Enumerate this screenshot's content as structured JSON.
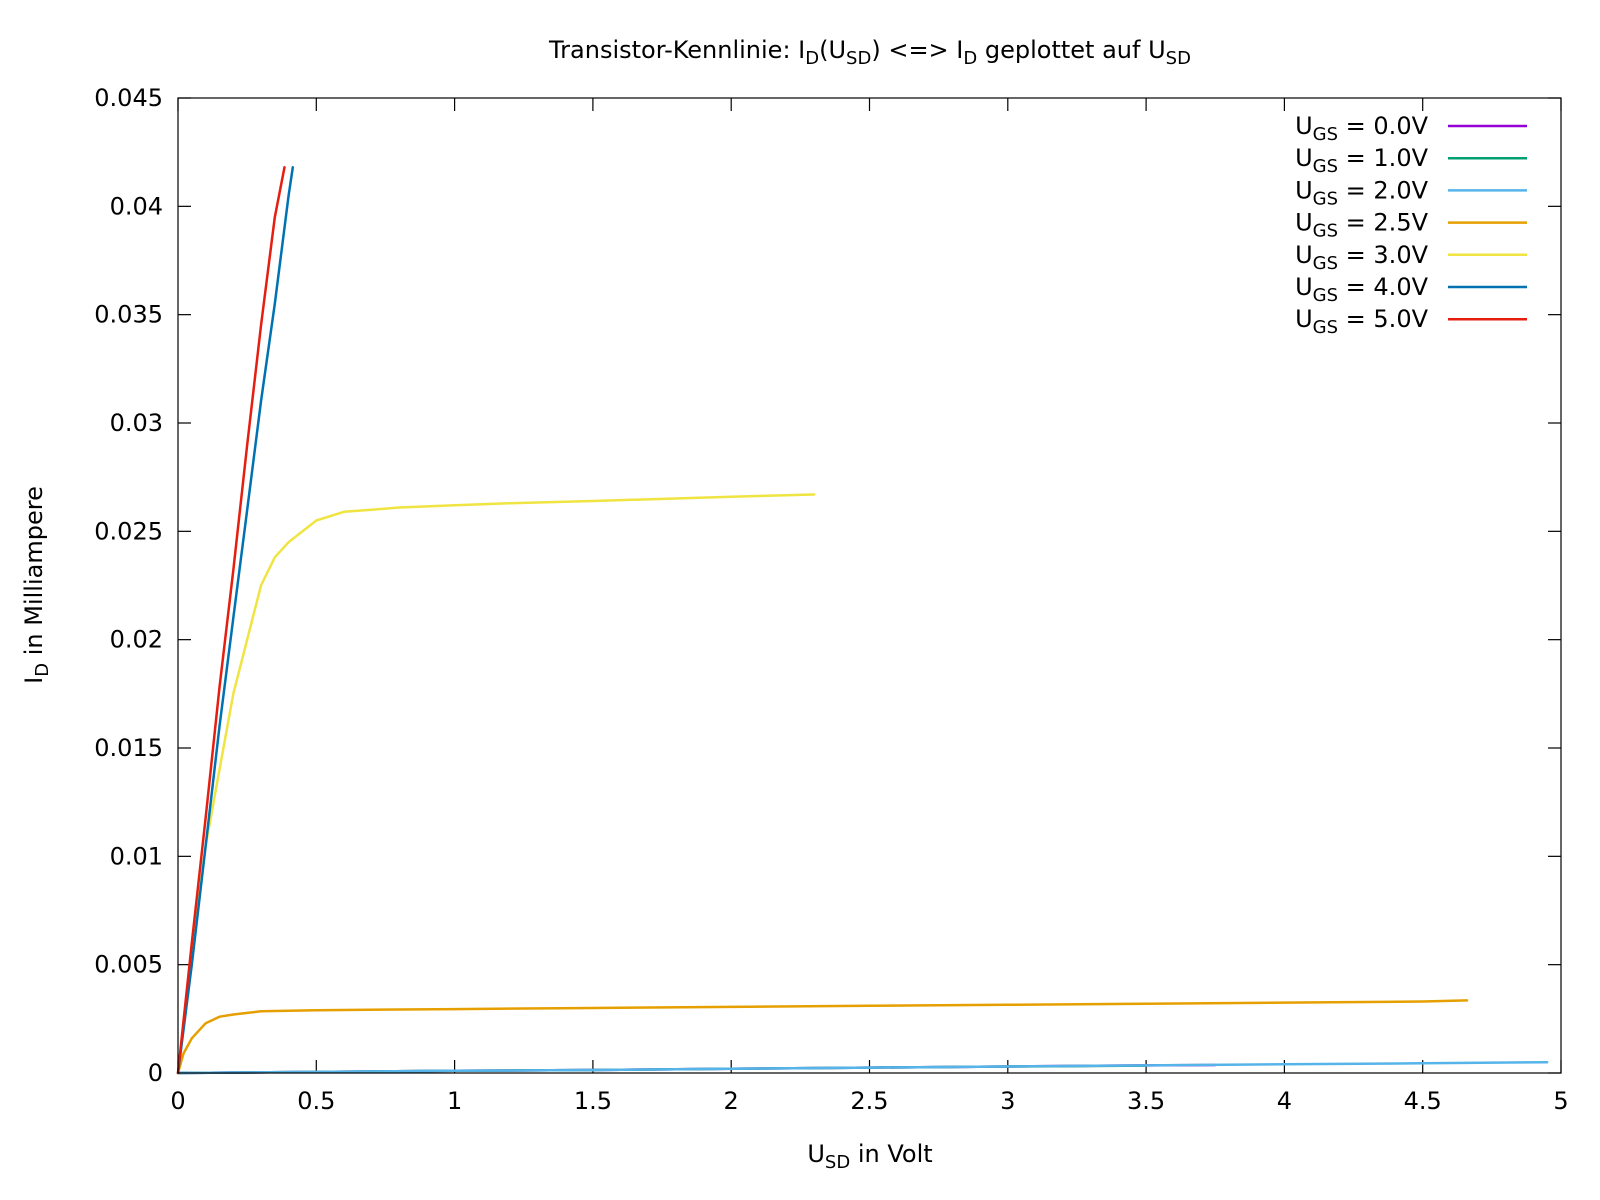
{
  "chart_data": {
    "type": "line",
    "title": {
      "parts": [
        {
          "text": "Transistor-Kennlinie: I"
        },
        {
          "text": "D",
          "sub": true
        },
        {
          "text": "(U"
        },
        {
          "text": "SD",
          "sub": true
        },
        {
          "text": ") <=> I"
        },
        {
          "text": "D",
          "sub": true
        },
        {
          "text": " geplottet auf U"
        },
        {
          "text": "SD",
          "sub": true
        }
      ]
    },
    "xlabel": {
      "parts": [
        {
          "text": "U"
        },
        {
          "text": "SD",
          "sub": true
        },
        {
          "text": " in Volt"
        }
      ]
    },
    "ylabel": {
      "parts": [
        {
          "text": "I"
        },
        {
          "text": "D",
          "sub": true
        },
        {
          "text": " in Milliampere"
        }
      ]
    },
    "xlim": [
      0,
      5
    ],
    "ylim": [
      0,
      0.045
    ],
    "xticks": [
      0,
      0.5,
      1,
      1.5,
      2,
      2.5,
      3,
      3.5,
      4,
      4.5,
      5
    ],
    "xtick_labels": [
      "0",
      "0.5",
      "1",
      "1.5",
      "2",
      "2.5",
      "3",
      "3.5",
      "4",
      "4.5",
      "5"
    ],
    "yticks": [
      0,
      0.005,
      0.01,
      0.015,
      0.02,
      0.025,
      0.03,
      0.035,
      0.04,
      0.045
    ],
    "ytick_labels": [
      "0",
      "0.005",
      "0.01",
      "0.015",
      "0.02",
      "0.025",
      "0.03",
      "0.035",
      "0.04",
      "0.045"
    ],
    "grid": false,
    "legend_position": "top-right",
    "series": [
      {
        "name": "U_GS = 0.0V",
        "label_parts": [
          {
            "text": "U"
          },
          {
            "text": "GS",
            "sub": true
          },
          {
            "text": " = 0.0V"
          }
        ],
        "color": "#9400d3",
        "x": [
          0,
          0.5,
          1,
          1.5,
          2,
          2.5,
          3,
          3.5,
          3.75
        ],
        "y": [
          0,
          5e-05,
          0.0001,
          0.00014,
          0.0002,
          0.00025,
          0.0003,
          0.00035,
          0.00037
        ]
      },
      {
        "name": "U_GS = 1.0V",
        "label_parts": [
          {
            "text": "U"
          },
          {
            "text": "GS",
            "sub": true
          },
          {
            "text": " = 1.0V"
          }
        ],
        "color": "#009e73",
        "x": [
          0,
          0.5,
          1,
          1.5,
          2,
          2.5,
          3,
          3.5
        ],
        "y": [
          0,
          5e-05,
          0.0001,
          0.00014,
          0.0002,
          0.00025,
          0.0003,
          0.00034
        ]
      },
      {
        "name": "U_GS = 2.0V",
        "label_parts": [
          {
            "text": "U"
          },
          {
            "text": "GS",
            "sub": true
          },
          {
            "text": " = 2.0V"
          }
        ],
        "color": "#56b4e9",
        "x": [
          0,
          0.5,
          1,
          1.5,
          2,
          2.5,
          3,
          3.5,
          4,
          4.5,
          4.95
        ],
        "y": [
          0,
          5e-05,
          0.0001,
          0.00014,
          0.0002,
          0.00025,
          0.0003,
          0.00035,
          0.0004,
          0.00045,
          0.0005
        ]
      },
      {
        "name": "U_GS = 2.5V",
        "label_parts": [
          {
            "text": "U"
          },
          {
            "text": "GS",
            "sub": true
          },
          {
            "text": " = 2.5V"
          }
        ],
        "color": "#e69f00",
        "x": [
          0,
          0.02,
          0.05,
          0.1,
          0.15,
          0.2,
          0.3,
          0.5,
          1,
          1.5,
          2,
          2.5,
          3,
          3.5,
          4,
          4.5,
          4.66
        ],
        "y": [
          0,
          0.0009,
          0.0016,
          0.0023,
          0.0026,
          0.0027,
          0.00285,
          0.0029,
          0.00295,
          0.003,
          0.00305,
          0.0031,
          0.00315,
          0.0032,
          0.00325,
          0.0033,
          0.00335
        ]
      },
      {
        "name": "U_GS = 3.0V",
        "label_parts": [
          {
            "text": "U"
          },
          {
            "text": "GS",
            "sub": true
          },
          {
            "text": " = 3.0V"
          }
        ],
        "color": "#f0e442",
        "x": [
          0,
          0.05,
          0.1,
          0.2,
          0.3,
          0.35,
          0.4,
          0.5,
          0.6,
          0.7,
          0.8,
          1,
          1.2,
          1.5,
          2,
          2.3
        ],
        "y": [
          0,
          0.0055,
          0.0105,
          0.0175,
          0.0225,
          0.0238,
          0.0245,
          0.0255,
          0.0259,
          0.026,
          0.0261,
          0.0262,
          0.0263,
          0.0264,
          0.0266,
          0.0267
        ]
      },
      {
        "name": "U_GS = 4.0V",
        "label_parts": [
          {
            "text": "U"
          },
          {
            "text": "GS",
            "sub": true
          },
          {
            "text": " = 4.0V"
          }
        ],
        "color": "#0072b2",
        "x": [
          0,
          0.05,
          0.1,
          0.15,
          0.2,
          0.25,
          0.3,
          0.35,
          0.4,
          0.415
        ],
        "y": [
          0,
          0.005,
          0.0105,
          0.016,
          0.021,
          0.026,
          0.031,
          0.0355,
          0.0405,
          0.0418
        ]
      },
      {
        "name": "U_GS = 5.0V",
        "label_parts": [
          {
            "text": "U"
          },
          {
            "text": "GS",
            "sub": true
          },
          {
            "text": " = 5.0V"
          }
        ],
        "color": "#e51e10",
        "x": [
          0,
          0.05,
          0.1,
          0.15,
          0.2,
          0.25,
          0.3,
          0.35,
          0.385
        ],
        "y": [
          0,
          0.006,
          0.0118,
          0.0178,
          0.0232,
          0.029,
          0.0345,
          0.0395,
          0.0418
        ]
      }
    ]
  }
}
